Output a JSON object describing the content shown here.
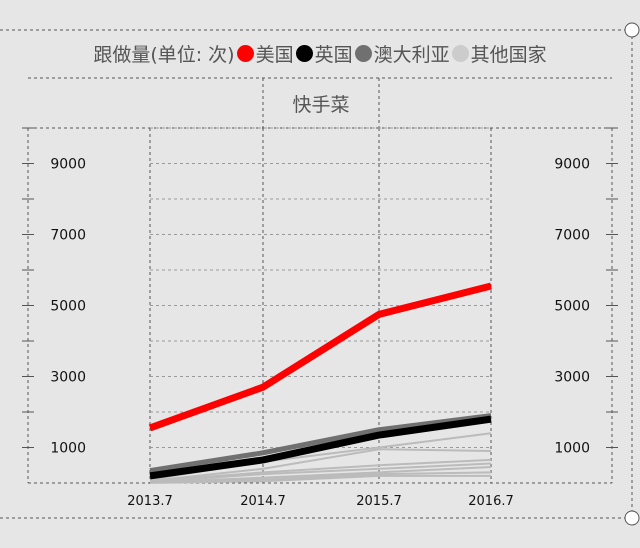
{
  "legend": {
    "title": "跟做量(单位: 次)",
    "items": [
      {
        "label": "美国",
        "color": "#ff0000"
      },
      {
        "label": "英国",
        "color": "#000000"
      },
      {
        "label": "澳大利亚",
        "color": "#707070"
      },
      {
        "label": "其他国家",
        "color": "#cccccc"
      }
    ]
  },
  "chart_data": {
    "type": "line",
    "title": "快手菜",
    "x": [
      "2013.7",
      "2014.7",
      "2015.7",
      "2016.7"
    ],
    "ylim": [
      0,
      10000
    ],
    "yticks": [
      1000,
      3000,
      5000,
      7000,
      9000
    ],
    "series": [
      {
        "name": "美国",
        "color": "#ff0000",
        "width": 7,
        "values": [
          1550,
          2700,
          4750,
          5550
        ]
      },
      {
        "name": "英国",
        "color": "#000000",
        "width": 7,
        "values": [
          200,
          650,
          1350,
          1800
        ]
      },
      {
        "name": "澳大利亚",
        "color": "#707070",
        "width": 5,
        "values": [
          350,
          850,
          1500,
          1900
        ]
      },
      {
        "name": "其他国家",
        "color": "#bbbbbb",
        "width": 2,
        "values": [
          80,
          900,
          1480,
          1750
        ]
      },
      {
        "color": "#bbbbbb",
        "width": 2,
        "values": [
          100,
          600,
          1000,
          1400
        ]
      },
      {
        "color": "#bbbbbb",
        "width": 2,
        "values": [
          60,
          400,
          950,
          900
        ]
      },
      {
        "color": "#bbbbbb",
        "width": 2,
        "values": [
          50,
          300,
          500,
          650
        ]
      },
      {
        "color": "#bbbbbb",
        "width": 2,
        "values": [
          30,
          250,
          400,
          550
        ]
      },
      {
        "color": "#bbbbbb",
        "width": 2,
        "values": [
          20,
          150,
          300,
          450
        ]
      },
      {
        "color": "#bbbbbb",
        "width": 2,
        "values": [
          10,
          100,
          250,
          300
        ]
      },
      {
        "color": "#bbbbbb",
        "width": 2,
        "values": [
          5,
          50,
          200,
          200
        ]
      }
    ]
  }
}
